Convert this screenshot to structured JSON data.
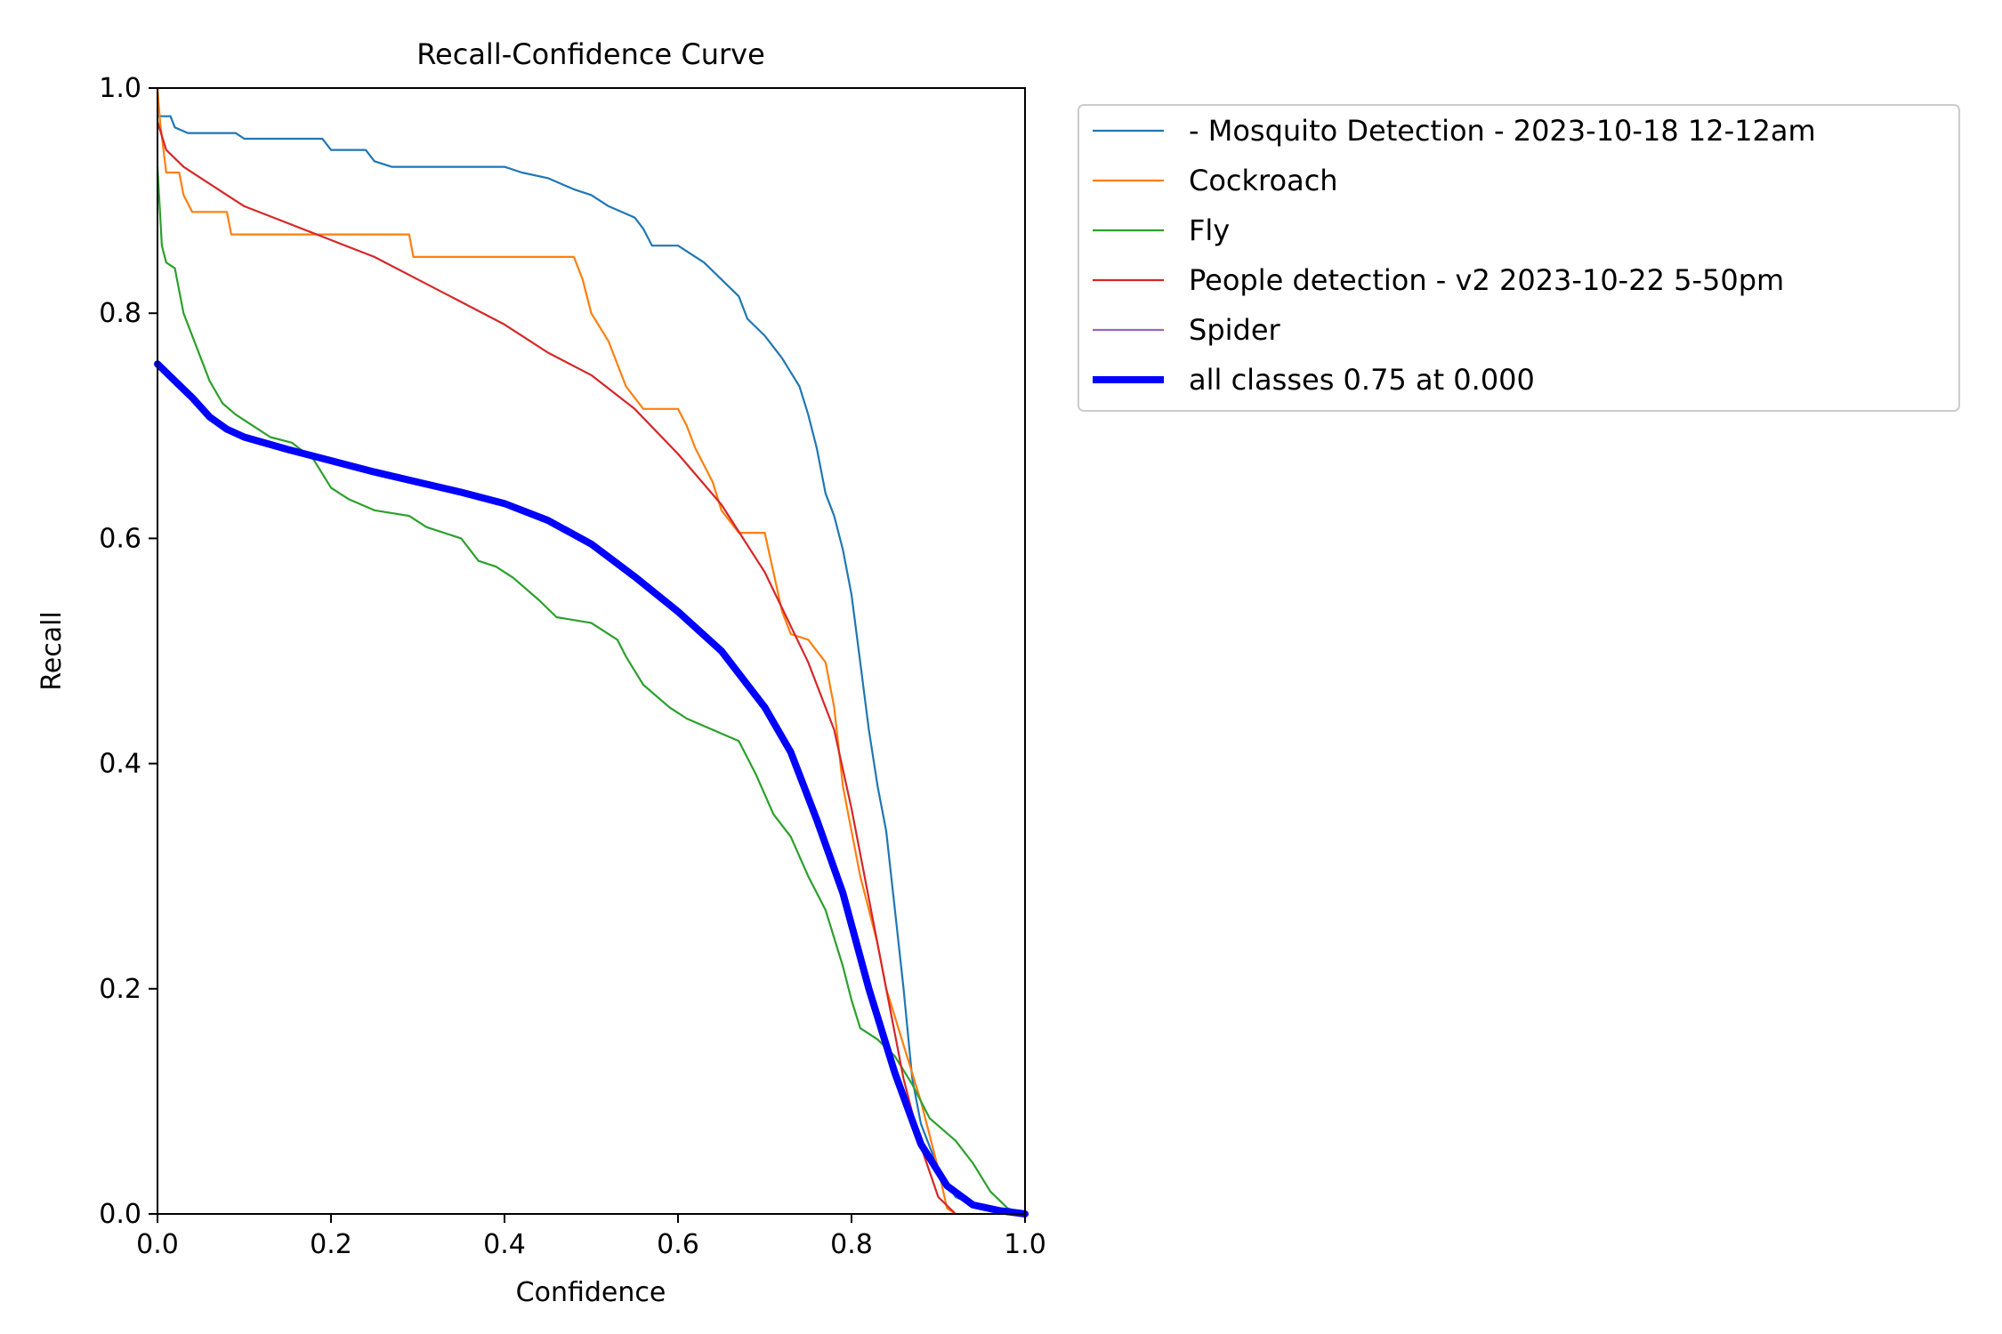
{
  "chart_data": {
    "type": "line",
    "title": "Recall-Confidence Curve",
    "xlabel": "Confidence",
    "ylabel": "Recall",
    "xlim": [
      0.0,
      1.0
    ],
    "ylim": [
      0.0,
      1.0
    ],
    "xticks": [
      0.0,
      0.2,
      0.4,
      0.6,
      0.8,
      1.0
    ],
    "yticks": [
      0.0,
      0.2,
      0.4,
      0.6,
      0.8,
      1.0
    ],
    "xtick_labels": [
      "0.0",
      "0.2",
      "0.4",
      "0.6",
      "0.8",
      "1.0"
    ],
    "ytick_labels": [
      "0.0",
      "0.2",
      "0.4",
      "0.6",
      "0.8",
      "1.0"
    ],
    "grid": false,
    "legend_position": "outside-upper-right",
    "series": [
      {
        "name": "- Mosquito Detection - 2023-10-18 12-12am",
        "color": "#1f77b4",
        "points": [
          [
            0.0,
            0.975
          ],
          [
            0.015,
            0.975
          ],
          [
            0.02,
            0.965
          ],
          [
            0.035,
            0.96
          ],
          [
            0.09,
            0.96
          ],
          [
            0.1,
            0.955
          ],
          [
            0.19,
            0.955
          ],
          [
            0.2,
            0.945
          ],
          [
            0.24,
            0.945
          ],
          [
            0.25,
            0.935
          ],
          [
            0.27,
            0.93
          ],
          [
            0.4,
            0.93
          ],
          [
            0.42,
            0.925
          ],
          [
            0.45,
            0.92
          ],
          [
            0.48,
            0.91
          ],
          [
            0.5,
            0.905
          ],
          [
            0.52,
            0.895
          ],
          [
            0.55,
            0.885
          ],
          [
            0.56,
            0.875
          ],
          [
            0.57,
            0.86
          ],
          [
            0.6,
            0.86
          ],
          [
            0.63,
            0.845
          ],
          [
            0.65,
            0.83
          ],
          [
            0.67,
            0.815
          ],
          [
            0.68,
            0.795
          ],
          [
            0.7,
            0.78
          ],
          [
            0.72,
            0.76
          ],
          [
            0.74,
            0.735
          ],
          [
            0.75,
            0.71
          ],
          [
            0.76,
            0.68
          ],
          [
            0.77,
            0.64
          ],
          [
            0.78,
            0.62
          ],
          [
            0.79,
            0.59
          ],
          [
            0.8,
            0.55
          ],
          [
            0.81,
            0.49
          ],
          [
            0.82,
            0.43
          ],
          [
            0.83,
            0.38
          ],
          [
            0.84,
            0.34
          ],
          [
            0.85,
            0.27
          ],
          [
            0.86,
            0.2
          ],
          [
            0.87,
            0.12
          ],
          [
            0.88,
            0.08
          ],
          [
            0.9,
            0.04
          ],
          [
            0.92,
            0.015
          ],
          [
            0.95,
            0.005
          ],
          [
            1.0,
            0.0
          ]
        ]
      },
      {
        "name": "Cockroach",
        "color": "#ff7f0e",
        "points": [
          [
            0.0,
            1.0
          ],
          [
            0.003,
            0.97
          ],
          [
            0.01,
            0.925
          ],
          [
            0.025,
            0.925
          ],
          [
            0.03,
            0.905
          ],
          [
            0.04,
            0.89
          ],
          [
            0.08,
            0.89
          ],
          [
            0.085,
            0.87
          ],
          [
            0.29,
            0.87
          ],
          [
            0.295,
            0.85
          ],
          [
            0.48,
            0.85
          ],
          [
            0.49,
            0.83
          ],
          [
            0.5,
            0.8
          ],
          [
            0.52,
            0.775
          ],
          [
            0.54,
            0.735
          ],
          [
            0.56,
            0.715
          ],
          [
            0.6,
            0.715
          ],
          [
            0.61,
            0.7
          ],
          [
            0.62,
            0.68
          ],
          [
            0.64,
            0.65
          ],
          [
            0.65,
            0.625
          ],
          [
            0.67,
            0.605
          ],
          [
            0.7,
            0.605
          ],
          [
            0.72,
            0.535
          ],
          [
            0.73,
            0.515
          ],
          [
            0.75,
            0.51
          ],
          [
            0.77,
            0.49
          ],
          [
            0.78,
            0.45
          ],
          [
            0.79,
            0.38
          ],
          [
            0.8,
            0.34
          ],
          [
            0.81,
            0.3
          ],
          [
            0.83,
            0.24
          ],
          [
            0.84,
            0.2
          ],
          [
            0.86,
            0.15
          ],
          [
            0.88,
            0.1
          ],
          [
            0.9,
            0.04
          ],
          [
            0.91,
            0.005
          ],
          [
            0.92,
            0.0
          ]
        ]
      },
      {
        "name": "Fly",
        "color": "#2ca02c",
        "points": [
          [
            0.0,
            0.93
          ],
          [
            0.005,
            0.86
          ],
          [
            0.01,
            0.845
          ],
          [
            0.02,
            0.84
          ],
          [
            0.025,
            0.82
          ],
          [
            0.03,
            0.8
          ],
          [
            0.045,
            0.77
          ],
          [
            0.06,
            0.74
          ],
          [
            0.075,
            0.72
          ],
          [
            0.09,
            0.71
          ],
          [
            0.11,
            0.7
          ],
          [
            0.13,
            0.69
          ],
          [
            0.155,
            0.685
          ],
          [
            0.18,
            0.67
          ],
          [
            0.2,
            0.645
          ],
          [
            0.22,
            0.635
          ],
          [
            0.25,
            0.625
          ],
          [
            0.29,
            0.62
          ],
          [
            0.31,
            0.61
          ],
          [
            0.35,
            0.6
          ],
          [
            0.37,
            0.58
          ],
          [
            0.39,
            0.575
          ],
          [
            0.41,
            0.565
          ],
          [
            0.44,
            0.545
          ],
          [
            0.46,
            0.53
          ],
          [
            0.5,
            0.525
          ],
          [
            0.53,
            0.51
          ],
          [
            0.54,
            0.495
          ],
          [
            0.56,
            0.47
          ],
          [
            0.59,
            0.45
          ],
          [
            0.61,
            0.44
          ],
          [
            0.67,
            0.42
          ],
          [
            0.69,
            0.39
          ],
          [
            0.71,
            0.355
          ],
          [
            0.73,
            0.335
          ],
          [
            0.75,
            0.3
          ],
          [
            0.77,
            0.27
          ],
          [
            0.79,
            0.22
          ],
          [
            0.8,
            0.19
          ],
          [
            0.81,
            0.165
          ],
          [
            0.83,
            0.155
          ],
          [
            0.85,
            0.14
          ],
          [
            0.87,
            0.115
          ],
          [
            0.89,
            0.085
          ],
          [
            0.92,
            0.065
          ],
          [
            0.94,
            0.045
          ],
          [
            0.96,
            0.02
          ],
          [
            0.98,
            0.005
          ],
          [
            1.0,
            0.0
          ]
        ]
      },
      {
        "name": "People detection - v2 2023-10-22 5-50pm",
        "color": "#d62728",
        "points": [
          [
            0.0,
            0.97
          ],
          [
            0.01,
            0.945
          ],
          [
            0.03,
            0.93
          ],
          [
            0.05,
            0.92
          ],
          [
            0.08,
            0.905
          ],
          [
            0.1,
            0.895
          ],
          [
            0.15,
            0.88
          ],
          [
            0.2,
            0.865
          ],
          [
            0.25,
            0.85
          ],
          [
            0.3,
            0.83
          ],
          [
            0.35,
            0.81
          ],
          [
            0.4,
            0.79
          ],
          [
            0.45,
            0.765
          ],
          [
            0.5,
            0.745
          ],
          [
            0.55,
            0.715
          ],
          [
            0.6,
            0.675
          ],
          [
            0.65,
            0.63
          ],
          [
            0.7,
            0.57
          ],
          [
            0.75,
            0.49
          ],
          [
            0.78,
            0.43
          ],
          [
            0.8,
            0.36
          ],
          [
            0.82,
            0.28
          ],
          [
            0.84,
            0.2
          ],
          [
            0.86,
            0.12
          ],
          [
            0.88,
            0.06
          ],
          [
            0.9,
            0.015
          ],
          [
            0.92,
            0.0
          ]
        ]
      },
      {
        "name": "Spider",
        "color": "#9467bd",
        "points": []
      },
      {
        "name": "all classes 0.75 at 0.000",
        "color": "#0000ff",
        "bold": true,
        "points": [
          [
            0.0,
            0.755
          ],
          [
            0.02,
            0.74
          ],
          [
            0.04,
            0.725
          ],
          [
            0.06,
            0.708
          ],
          [
            0.08,
            0.697
          ],
          [
            0.1,
            0.69
          ],
          [
            0.15,
            0.679
          ],
          [
            0.2,
            0.669
          ],
          [
            0.25,
            0.659
          ],
          [
            0.3,
            0.65
          ],
          [
            0.35,
            0.641
          ],
          [
            0.4,
            0.631
          ],
          [
            0.45,
            0.616
          ],
          [
            0.5,
            0.595
          ],
          [
            0.55,
            0.566
          ],
          [
            0.6,
            0.535
          ],
          [
            0.65,
            0.5
          ],
          [
            0.7,
            0.45
          ],
          [
            0.73,
            0.41
          ],
          [
            0.76,
            0.35
          ],
          [
            0.79,
            0.285
          ],
          [
            0.82,
            0.2
          ],
          [
            0.85,
            0.125
          ],
          [
            0.88,
            0.062
          ],
          [
            0.91,
            0.025
          ],
          [
            0.94,
            0.008
          ],
          [
            0.97,
            0.003
          ],
          [
            1.0,
            0.0
          ]
        ]
      }
    ]
  }
}
